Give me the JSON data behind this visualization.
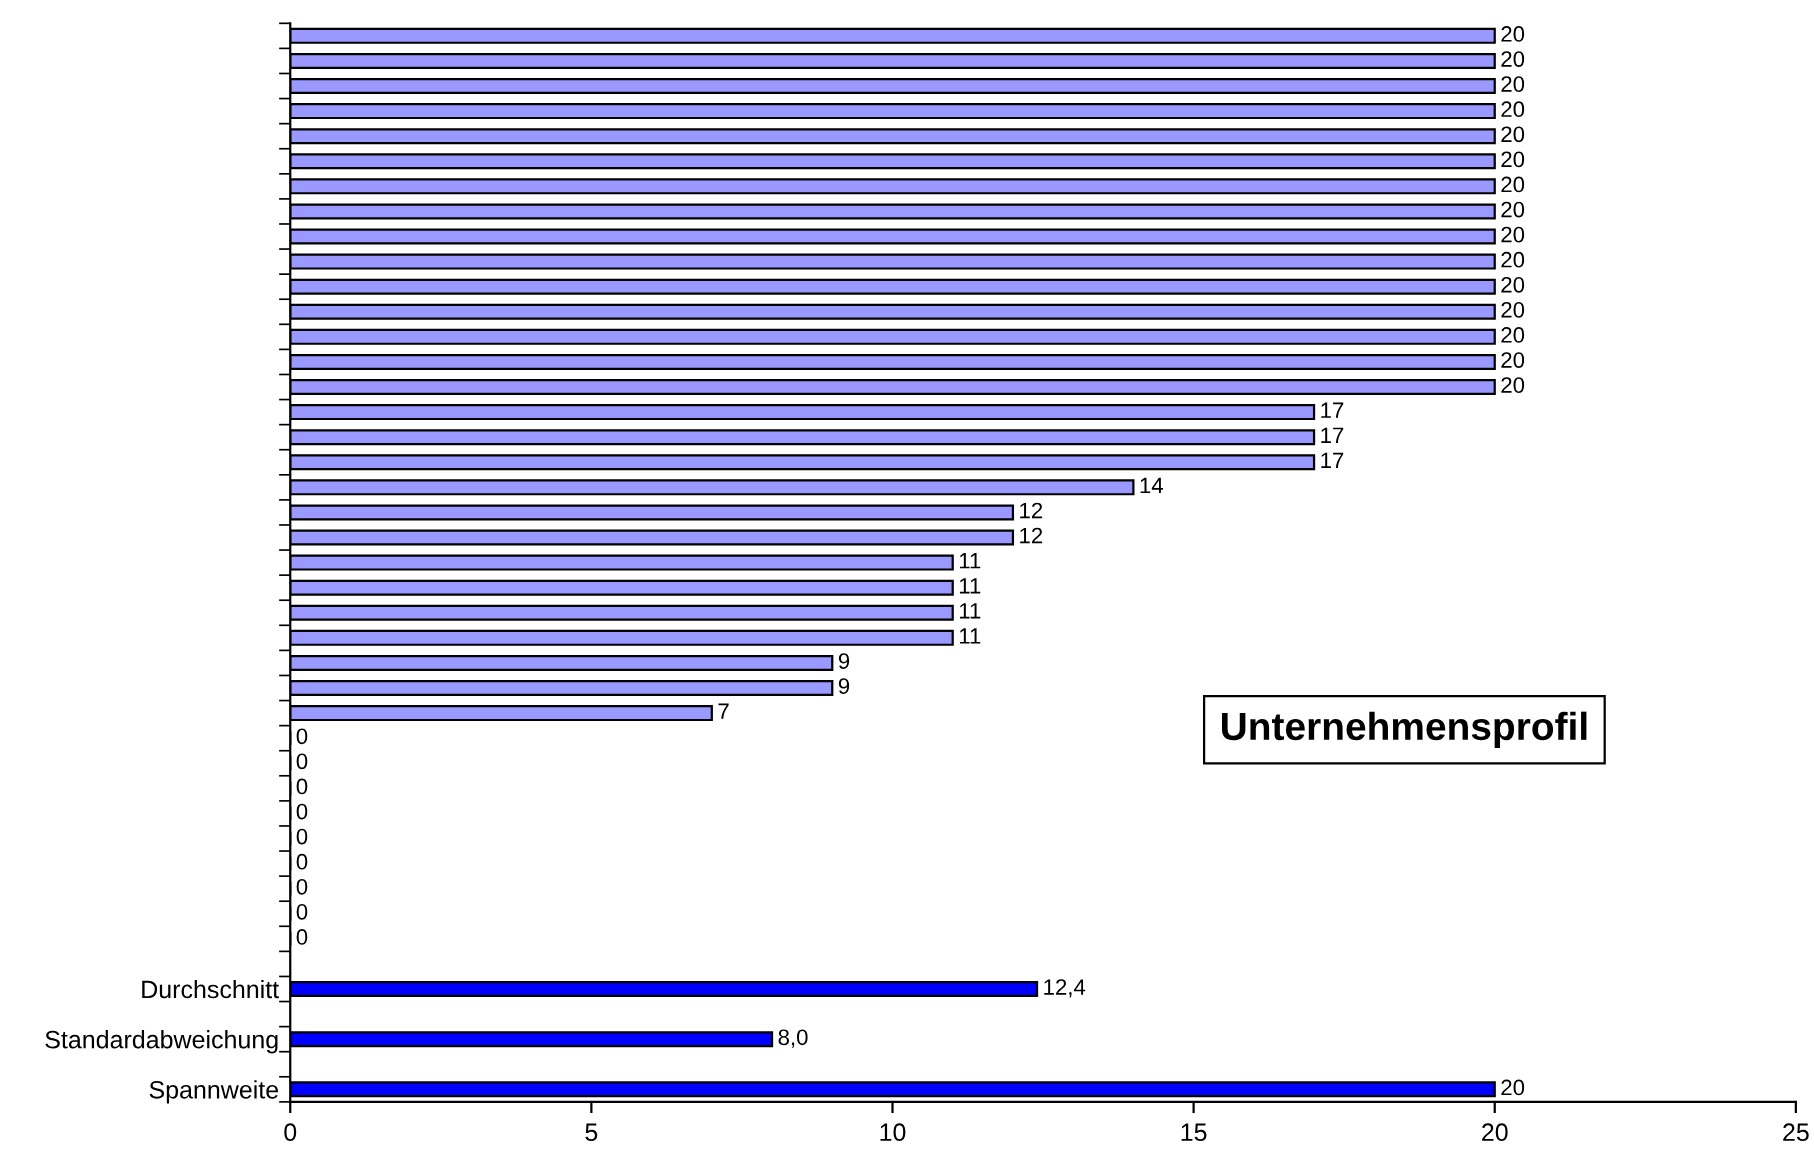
{
  "chart_data": {
    "type": "bar",
    "orientation": "horizontal",
    "title": "Unternehmensprofil",
    "categories": [
      null,
      null,
      null,
      null,
      null,
      null,
      null,
      null,
      null,
      null,
      null,
      null,
      null,
      null,
      null,
      null,
      null,
      null,
      null,
      null,
      null,
      null,
      null,
      null,
      null,
      null,
      null,
      null,
      null,
      null,
      null,
      null,
      null,
      null,
      null,
      null,
      null,
      null,
      "Durchschnitt",
      null,
      "Standardabweichung",
      null,
      "Spannweite"
    ],
    "values": [
      20,
      20,
      20,
      20,
      20,
      20,
      20,
      20,
      20,
      20,
      20,
      20,
      20,
      20,
      20,
      17,
      17,
      17,
      14,
      12,
      12,
      11,
      11,
      11,
      11,
      9,
      9,
      7,
      0,
      0,
      0,
      0,
      0,
      0,
      0,
      0,
      0,
      null,
      12.4,
      null,
      8.0,
      null,
      20
    ],
    "colors": [
      "#9999ff",
      "#9999ff",
      "#9999ff",
      "#9999ff",
      "#9999ff",
      "#9999ff",
      "#9999ff",
      "#9999ff",
      "#9999ff",
      "#9999ff",
      "#9999ff",
      "#9999ff",
      "#9999ff",
      "#9999ff",
      "#9999ff",
      "#9999ff",
      "#9999ff",
      "#9999ff",
      "#9999ff",
      "#9999ff",
      "#9999ff",
      "#9999ff",
      "#9999ff",
      "#9999ff",
      "#9999ff",
      "#9999ff",
      "#9999ff",
      "#9999ff",
      "#9999ff",
      "#9999ff",
      "#9999ff",
      "#9999ff",
      "#9999ff",
      "#9999ff",
      "#9999ff",
      "#9999ff",
      "#9999ff",
      null,
      "#0000ff",
      null,
      "#0000ff",
      null,
      "#0000ff"
    ],
    "value_labels": [
      "20",
      "20",
      "20",
      "20",
      "20",
      "20",
      "20",
      "20",
      "20",
      "20",
      "20",
      "20",
      "20",
      "20",
      "20",
      "17",
      "17",
      "17",
      "14",
      "12",
      "12",
      "11",
      "11",
      "11",
      "11",
      "9",
      "9",
      "7",
      "0",
      "0",
      "0",
      "0",
      "0",
      "0",
      "0",
      "0",
      "0",
      null,
      "12,4",
      null,
      "8,0",
      null,
      "20"
    ],
    "xlim": [
      0,
      25
    ],
    "xticks": [
      0,
      5,
      10,
      15,
      20,
      25
    ],
    "grid": false,
    "legend": false
  }
}
